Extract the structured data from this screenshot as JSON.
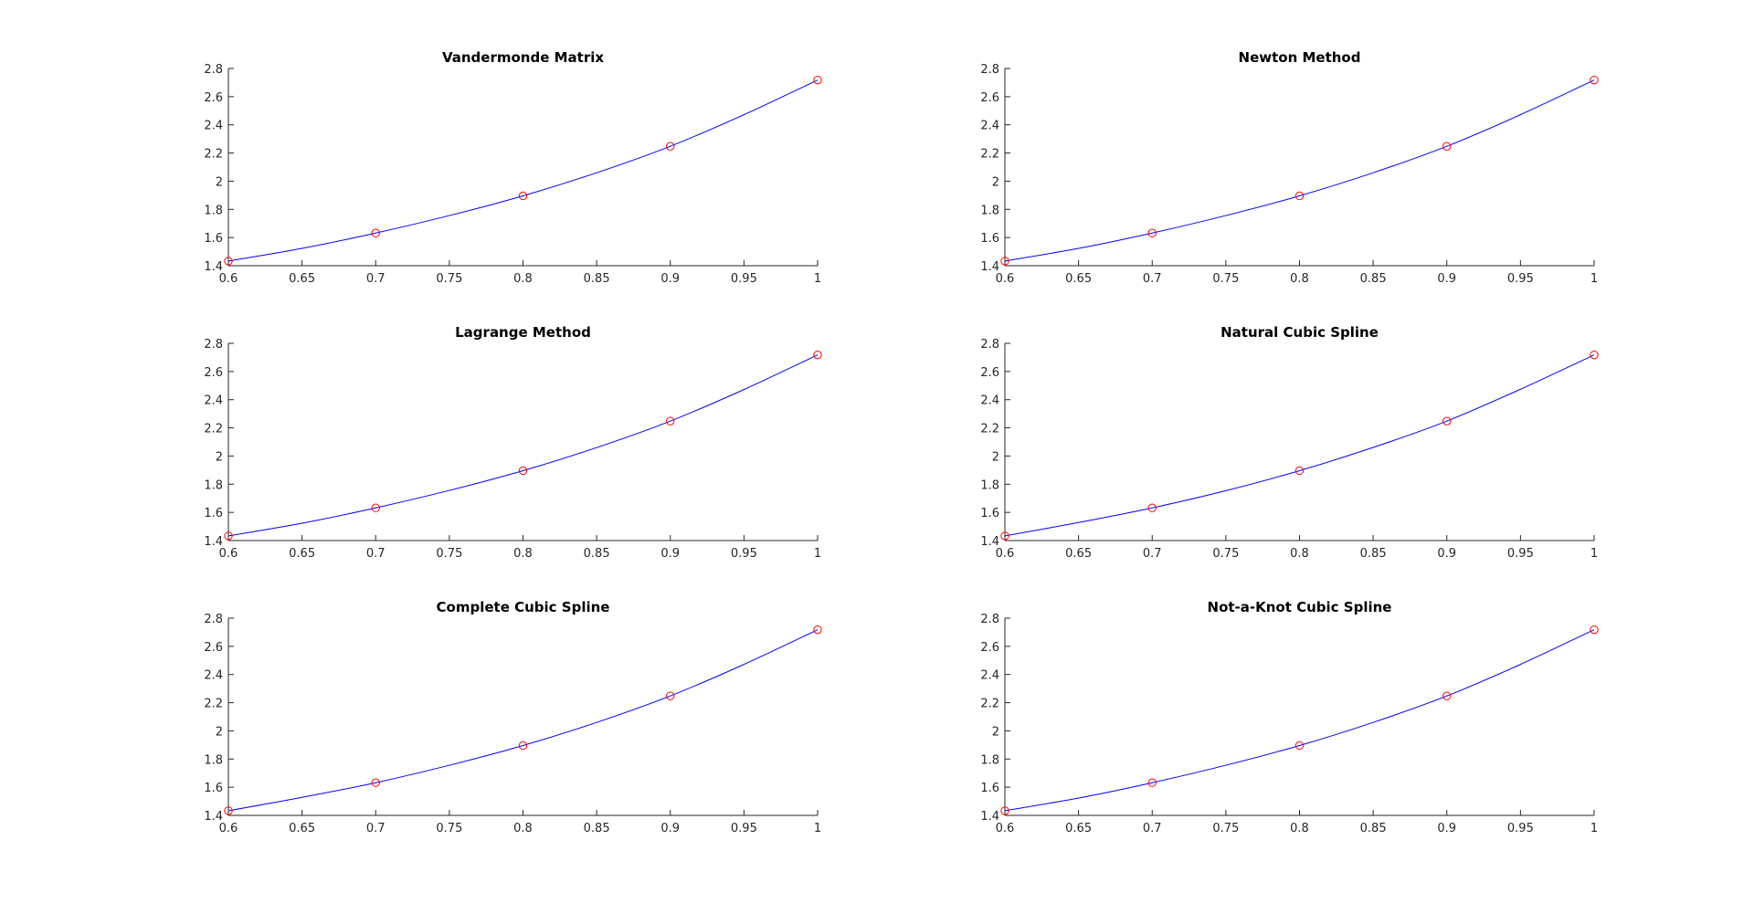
{
  "colors": {
    "curve": "#0000ff",
    "marker": "#ff0000",
    "axis": "#262626"
  },
  "chart_data": [
    {
      "type": "line",
      "title": "Vandermonde Matrix",
      "xlim": [
        0.6,
        1
      ],
      "ylim": [
        1.4,
        2.8
      ],
      "xticks": [
        "0.6",
        "0.65",
        "0.7",
        "0.75",
        "0.8",
        "0.85",
        "0.9",
        "0.95",
        "1"
      ],
      "yticks": [
        "1.4",
        "1.6",
        "1.8",
        "2",
        "2.2",
        "2.4",
        "2.6",
        "2.8"
      ],
      "grid": false,
      "series": [
        {
          "kind": "line",
          "color": "blue",
          "x": [
            0.6,
            0.65,
            0.7,
            0.75,
            0.8,
            0.85,
            0.9,
            0.95,
            1.0
          ],
          "y": [
            1.433,
            1.523,
            1.632,
            1.756,
            1.896,
            2.06,
            2.248,
            2.472,
            2.718
          ]
        },
        {
          "kind": "markers",
          "marker": "circle",
          "color": "red",
          "x": [
            0.6,
            0.7,
            0.8,
            0.9,
            1.0
          ],
          "y": [
            1.433,
            1.632,
            1.896,
            2.248,
            2.718
          ]
        }
      ]
    },
    {
      "type": "line",
      "title": "Newton Method",
      "xlim": [
        0.6,
        1
      ],
      "ylim": [
        1.4,
        2.8
      ],
      "xticks": [
        "0.6",
        "0.65",
        "0.7",
        "0.75",
        "0.8",
        "0.85",
        "0.9",
        "0.95",
        "1"
      ],
      "yticks": [
        "1.4",
        "1.6",
        "1.8",
        "2",
        "2.2",
        "2.4",
        "2.6",
        "2.8"
      ],
      "grid": false,
      "series": [
        {
          "kind": "line",
          "color": "blue",
          "x": [
            0.6,
            0.65,
            0.7,
            0.75,
            0.8,
            0.85,
            0.9,
            0.95,
            1.0
          ],
          "y": [
            1.433,
            1.523,
            1.632,
            1.756,
            1.896,
            2.06,
            2.248,
            2.472,
            2.718
          ]
        },
        {
          "kind": "markers",
          "marker": "circle",
          "color": "red",
          "x": [
            0.6,
            0.7,
            0.8,
            0.9,
            1.0
          ],
          "y": [
            1.433,
            1.632,
            1.896,
            2.248,
            2.718
          ]
        }
      ]
    },
    {
      "type": "line",
      "title": "Lagrange Method",
      "xlim": [
        0.6,
        1
      ],
      "ylim": [
        1.4,
        2.8
      ],
      "xticks": [
        "0.6",
        "0.65",
        "0.7",
        "0.75",
        "0.8",
        "0.85",
        "0.9",
        "0.95",
        "1"
      ],
      "yticks": [
        "1.4",
        "1.6",
        "1.8",
        "2",
        "2.2",
        "2.4",
        "2.6",
        "2.8"
      ],
      "grid": false,
      "series": [
        {
          "kind": "line",
          "color": "blue",
          "x": [
            0.6,
            0.65,
            0.7,
            0.75,
            0.8,
            0.85,
            0.9,
            0.95,
            1.0
          ],
          "y": [
            1.433,
            1.523,
            1.632,
            1.756,
            1.896,
            2.06,
            2.248,
            2.472,
            2.718
          ]
        },
        {
          "kind": "markers",
          "marker": "circle",
          "color": "red",
          "x": [
            0.6,
            0.7,
            0.8,
            0.9,
            1.0
          ],
          "y": [
            1.433,
            1.632,
            1.896,
            2.248,
            2.718
          ]
        }
      ]
    },
    {
      "type": "line",
      "title": "Natural Cubic Spline",
      "xlim": [
        0.6,
        1
      ],
      "ylim": [
        1.4,
        2.8
      ],
      "xticks": [
        "0.6",
        "0.65",
        "0.7",
        "0.75",
        "0.8",
        "0.85",
        "0.9",
        "0.95",
        "1"
      ],
      "yticks": [
        "1.4",
        "1.6",
        "1.8",
        "2",
        "2.2",
        "2.4",
        "2.6",
        "2.8"
      ],
      "grid": false,
      "series": [
        {
          "kind": "line",
          "color": "blue",
          "x": [
            0.6,
            0.65,
            0.7,
            0.75,
            0.8,
            0.85,
            0.9,
            0.95,
            1.0
          ],
          "y": [
            1.433,
            1.528,
            1.632,
            1.754,
            1.896,
            2.061,
            2.248,
            2.474,
            2.718
          ]
        },
        {
          "kind": "markers",
          "marker": "circle",
          "color": "red",
          "x": [
            0.6,
            0.7,
            0.8,
            0.9,
            1.0
          ],
          "y": [
            1.433,
            1.632,
            1.896,
            2.248,
            2.718
          ]
        }
      ]
    },
    {
      "type": "line",
      "title": "Complete Cubic Spline",
      "xlim": [
        0.6,
        1
      ],
      "ylim": [
        1.4,
        2.8
      ],
      "xticks": [
        "0.6",
        "0.65",
        "0.7",
        "0.75",
        "0.8",
        "0.85",
        "0.9",
        "0.95",
        "1"
      ],
      "yticks": [
        "1.4",
        "1.6",
        "1.8",
        "2",
        "2.2",
        "2.4",
        "2.6",
        "2.8"
      ],
      "grid": false,
      "series": [
        {
          "kind": "line",
          "color": "blue",
          "x": [
            0.6,
            0.65,
            0.7,
            0.75,
            0.8,
            0.85,
            0.9,
            0.95,
            1.0
          ],
          "y": [
            1.433,
            1.528,
            1.632,
            1.756,
            1.896,
            2.06,
            2.248,
            2.472,
            2.718
          ]
        },
        {
          "kind": "markers",
          "marker": "circle",
          "color": "red",
          "x": [
            0.6,
            0.7,
            0.8,
            0.9,
            1.0
          ],
          "y": [
            1.433,
            1.632,
            1.896,
            2.248,
            2.718
          ]
        }
      ]
    },
    {
      "type": "line",
      "title": "Not-a-Knot Cubic Spline",
      "xlim": [
        0.6,
        1
      ],
      "ylim": [
        1.4,
        2.8
      ],
      "xticks": [
        "0.6",
        "0.65",
        "0.7",
        "0.75",
        "0.8",
        "0.85",
        "0.9",
        "0.95",
        "1"
      ],
      "yticks": [
        "1.4",
        "1.6",
        "1.8",
        "2",
        "2.2",
        "2.4",
        "2.6",
        "2.8"
      ],
      "grid": false,
      "series": [
        {
          "kind": "line",
          "color": "blue",
          "x": [
            0.6,
            0.65,
            0.7,
            0.75,
            0.8,
            0.85,
            0.9,
            0.95,
            1.0
          ],
          "y": [
            1.433,
            1.523,
            1.632,
            1.756,
            1.896,
            2.06,
            2.248,
            2.472,
            2.718
          ]
        },
        {
          "kind": "markers",
          "marker": "circle",
          "color": "red",
          "x": [
            0.6,
            0.7,
            0.8,
            0.9,
            1.0
          ],
          "y": [
            1.433,
            1.632,
            1.896,
            2.248,
            2.718
          ]
        }
      ]
    }
  ]
}
